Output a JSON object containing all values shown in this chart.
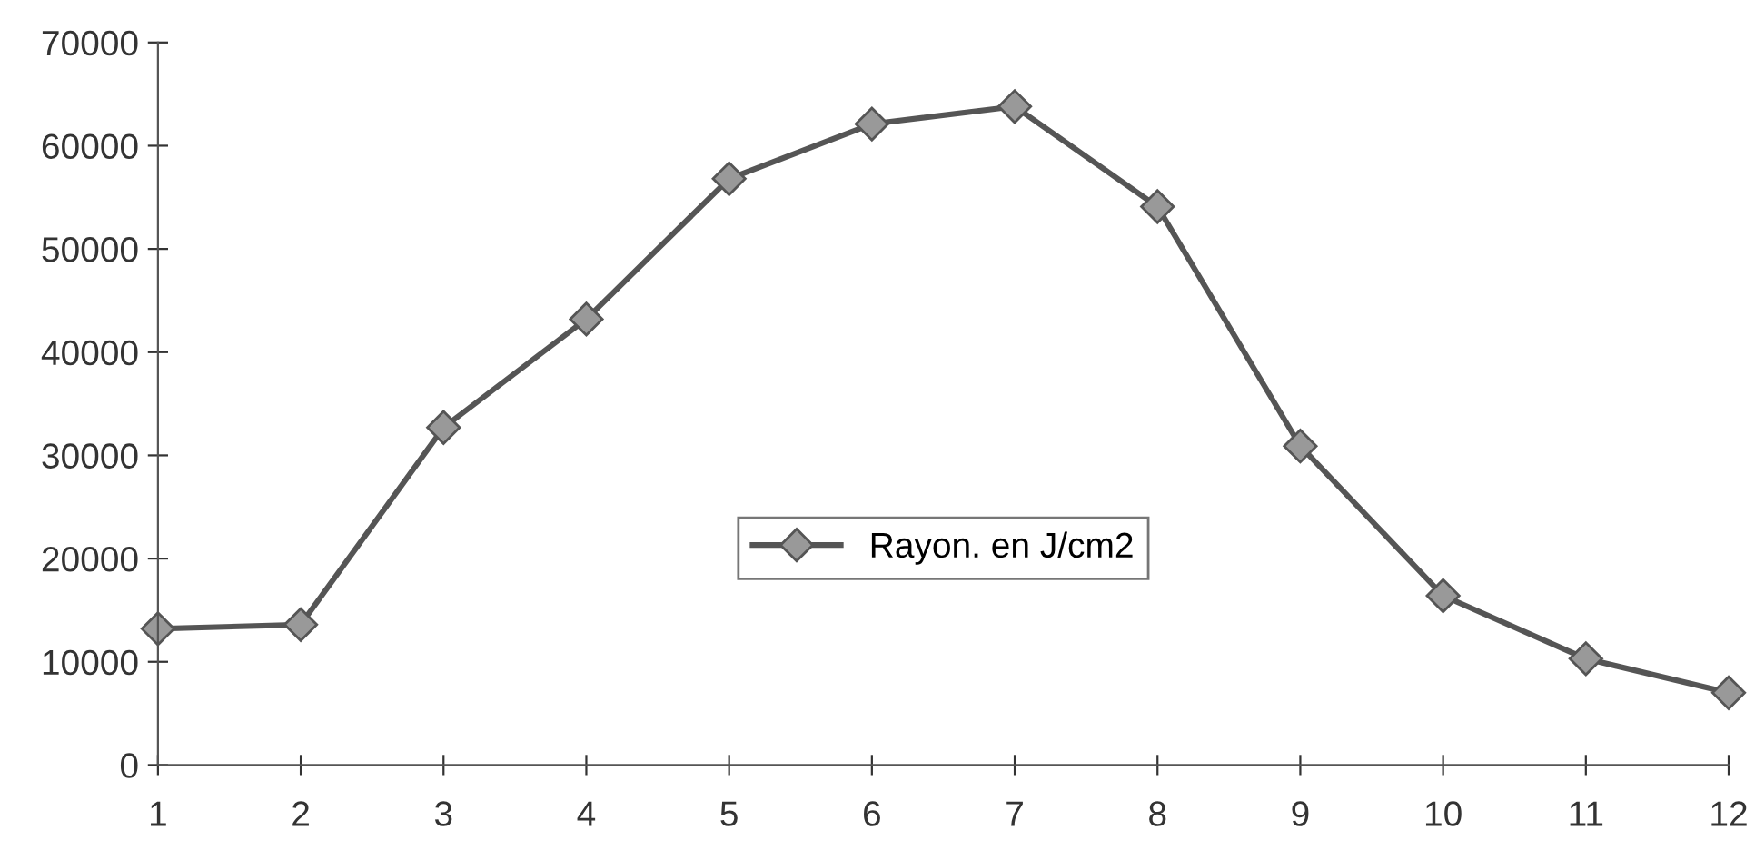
{
  "chart_data": {
    "type": "line",
    "x": [
      1,
      2,
      3,
      4,
      5,
      6,
      7,
      8,
      9,
      10,
      11,
      12
    ],
    "series": [
      {
        "name": "Rayon. en J/cm2",
        "color": "#555555",
        "values": [
          13200,
          13600,
          32700,
          43200,
          56800,
          62100,
          63800,
          54100,
          30900,
          16400,
          10300,
          7000
        ]
      }
    ],
    "xlim": [
      1,
      12
    ],
    "xticks": [
      1,
      2,
      3,
      4,
      5,
      6,
      7,
      8,
      9,
      10,
      11,
      12
    ],
    "ylim": [
      0,
      70000
    ],
    "yticks": [
      0,
      10000,
      20000,
      30000,
      40000,
      50000,
      60000,
      70000
    ],
    "marker": "diamond",
    "line_style": "solid",
    "grid": false,
    "legend": "center"
  }
}
